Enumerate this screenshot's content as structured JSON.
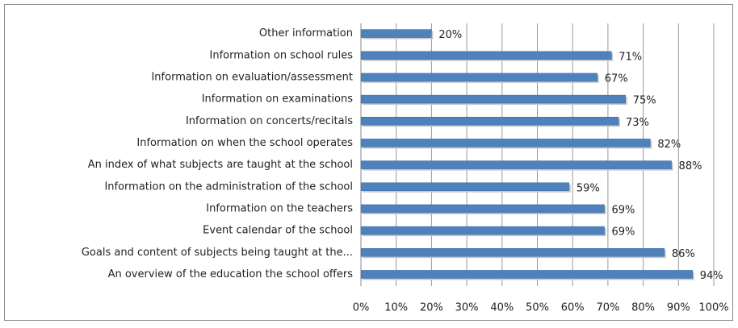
{
  "chart_data": {
    "type": "hbar",
    "categories": [
      "Other information",
      "Information on school rules",
      "Information on evaluation/assessment",
      "Information on examinations",
      "Information on concerts/recitals",
      "Information on when the school operates",
      "An index of what subjects are taught at the school",
      "Information on the administration of the school",
      "Information on the teachers",
      "Event calendar of the school",
      "Goals and content of subjects being taught at the...",
      "An overview of the education the school offers"
    ],
    "values": [
      20,
      71,
      67,
      75,
      73,
      82,
      88,
      59,
      69,
      69,
      86,
      94
    ],
    "value_labels": [
      "20%",
      "71%",
      "67%",
      "75%",
      "73%",
      "82%",
      "88%",
      "59%",
      "69%",
      "69%",
      "86%",
      "94%"
    ],
    "color": "#4f81bd",
    "xlim": [
      0,
      100
    ],
    "xticks": [
      {
        "value": 0,
        "label": "0%"
      },
      {
        "value": 10,
        "label": "10%"
      },
      {
        "value": 20,
        "label": "20%"
      },
      {
        "value": 30,
        "label": "30%"
      },
      {
        "value": 40,
        "label": "40%"
      },
      {
        "value": 50,
        "label": "50%"
      },
      {
        "value": 60,
        "label": "60%"
      },
      {
        "value": 70,
        "label": "70%"
      },
      {
        "value": 80,
        "label": "80%"
      },
      {
        "value": 90,
        "label": "90%"
      },
      {
        "value": 100,
        "label": "100%"
      }
    ],
    "grid": true
  }
}
